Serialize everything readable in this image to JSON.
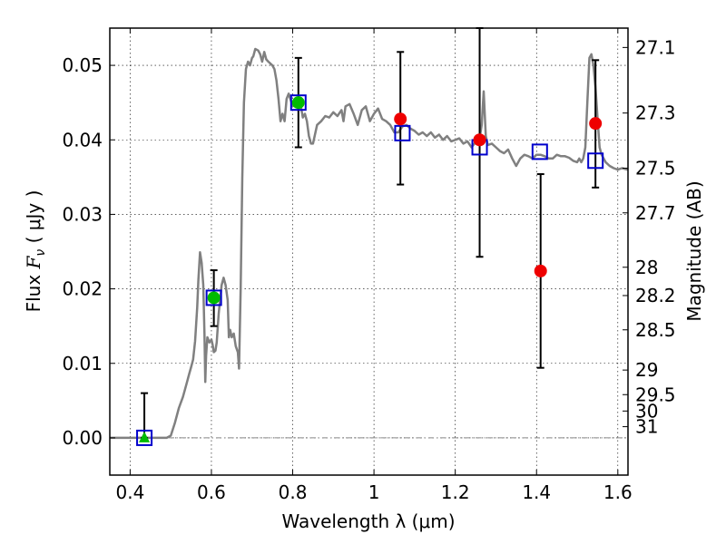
{
  "chart_data": {
    "type": "scatter",
    "xlabel": "Wavelength  λ (μm)",
    "ylabel_prefix": "Flux ",
    "ylabel_symbol": "F",
    "ylabel_subscript": "ν",
    "ylabel_suffix": " ( μJy )",
    "y2label": "Magnitude (AB)",
    "xlim": [
      0.35,
      1.625
    ],
    "ylim": [
      -0.005,
      0.055
    ],
    "grid": true,
    "xticks": [
      0.4,
      0.6,
      0.8,
      1.0,
      1.2,
      1.4,
      1.6
    ],
    "xtick_labels": [
      "0.4",
      "0.6",
      "0.8",
      "1",
      "1.2",
      "1.4",
      "1.6"
    ],
    "yticks": [
      0.0,
      0.01,
      0.02,
      0.03,
      0.04,
      0.05
    ],
    "ytick_labels": [
      "0.00",
      "0.01",
      "0.02",
      "0.03",
      "0.04",
      "0.05"
    ],
    "y2ticks": [
      {
        "label": "27.1",
        "flux": 0.0524
      },
      {
        "label": "27.3",
        "flux": 0.0436
      },
      {
        "label": "27.5",
        "flux": 0.0362
      },
      {
        "label": "27.7",
        "flux": 0.0302
      },
      {
        "label": "28",
        "flux": 0.0229
      },
      {
        "label": "28.2",
        "flux": 0.0191
      },
      {
        "label": "28.5",
        "flux": 0.0145
      },
      {
        "label": "29",
        "flux": 0.0091
      },
      {
        "label": "29.5",
        "flux": 0.0058
      },
      {
        "label": "30",
        "flux": 0.0036
      },
      {
        "label": "31",
        "flux": 0.0015
      }
    ],
    "zero_line": {
      "y": 0.0,
      "color": "#888888"
    },
    "sed_model": {
      "color": "#808080",
      "points": [
        [
          0.35,
          0.0
        ],
        [
          0.49,
          0.0
        ],
        [
          0.5,
          0.0003
        ],
        [
          0.51,
          0.002
        ],
        [
          0.52,
          0.004
        ],
        [
          0.53,
          0.0055
        ],
        [
          0.54,
          0.0075
        ],
        [
          0.545,
          0.0085
        ],
        [
          0.55,
          0.0095
        ],
        [
          0.555,
          0.0105
        ],
        [
          0.56,
          0.013
        ],
        [
          0.565,
          0.0175
        ],
        [
          0.568,
          0.0212
        ],
        [
          0.572,
          0.0249
        ],
        [
          0.576,
          0.0235
        ],
        [
          0.58,
          0.0205
        ],
        [
          0.583,
          0.014
        ],
        [
          0.585,
          0.0075
        ],
        [
          0.587,
          0.011
        ],
        [
          0.59,
          0.0135
        ],
        [
          0.595,
          0.0128
        ],
        [
          0.6,
          0.0132
        ],
        [
          0.603,
          0.0125
        ],
        [
          0.606,
          0.0115
        ],
        [
          0.61,
          0.0117
        ],
        [
          0.613,
          0.0128
        ],
        [
          0.618,
          0.0167
        ],
        [
          0.625,
          0.0205
        ],
        [
          0.63,
          0.0215
        ],
        [
          0.635,
          0.0205
        ],
        [
          0.64,
          0.0185
        ],
        [
          0.643,
          0.0135
        ],
        [
          0.646,
          0.0145
        ],
        [
          0.65,
          0.0135
        ],
        [
          0.655,
          0.014
        ],
        [
          0.66,
          0.0123
        ],
        [
          0.665,
          0.0115
        ],
        [
          0.668,
          0.0093
        ],
        [
          0.672,
          0.02
        ],
        [
          0.676,
          0.035
        ],
        [
          0.68,
          0.045
        ],
        [
          0.685,
          0.0495
        ],
        [
          0.69,
          0.0505
        ],
        [
          0.695,
          0.05
        ],
        [
          0.7,
          0.051
        ],
        [
          0.703,
          0.0512
        ],
        [
          0.708,
          0.0522
        ],
        [
          0.715,
          0.052
        ],
        [
          0.72,
          0.0515
        ],
        [
          0.725,
          0.0505
        ],
        [
          0.73,
          0.0518
        ],
        [
          0.735,
          0.0508
        ],
        [
          0.74,
          0.0505
        ],
        [
          0.75,
          0.05
        ],
        [
          0.755,
          0.0495
        ],
        [
          0.76,
          0.048
        ],
        [
          0.765,
          0.0455
        ],
        [
          0.77,
          0.0425
        ],
        [
          0.775,
          0.0435
        ],
        [
          0.78,
          0.0425
        ],
        [
          0.785,
          0.0455
        ],
        [
          0.79,
          0.0462
        ],
        [
          0.8,
          0.0445
        ],
        [
          0.81,
          0.045
        ],
        [
          0.82,
          0.0445
        ],
        [
          0.825,
          0.043
        ],
        [
          0.83,
          0.0435
        ],
        [
          0.835,
          0.0425
        ],
        [
          0.84,
          0.0405
        ],
        [
          0.845,
          0.0395
        ],
        [
          0.85,
          0.0395
        ],
        [
          0.86,
          0.042
        ],
        [
          0.87,
          0.0425
        ],
        [
          0.88,
          0.0432
        ],
        [
          0.89,
          0.043
        ],
        [
          0.9,
          0.0437
        ],
        [
          0.91,
          0.0432
        ],
        [
          0.92,
          0.044
        ],
        [
          0.925,
          0.0425
        ],
        [
          0.93,
          0.0445
        ],
        [
          0.94,
          0.0448
        ],
        [
          0.95,
          0.0435
        ],
        [
          0.96,
          0.042
        ],
        [
          0.97,
          0.044
        ],
        [
          0.98,
          0.0445
        ],
        [
          0.99,
          0.0425
        ],
        [
          1.0,
          0.0435
        ],
        [
          1.01,
          0.0442
        ],
        [
          1.02,
          0.0428
        ],
        [
          1.03,
          0.0425
        ],
        [
          1.04,
          0.042
        ],
        [
          1.05,
          0.041
        ],
        [
          1.06,
          0.041
        ],
        [
          1.07,
          0.0418
        ],
        [
          1.08,
          0.042
        ],
        [
          1.09,
          0.0415
        ],
        [
          1.1,
          0.0412
        ],
        [
          1.11,
          0.0407
        ],
        [
          1.12,
          0.041
        ],
        [
          1.13,
          0.0405
        ],
        [
          1.14,
          0.041
        ],
        [
          1.15,
          0.0403
        ],
        [
          1.16,
          0.0407
        ],
        [
          1.17,
          0.04
        ],
        [
          1.18,
          0.0405
        ],
        [
          1.19,
          0.0398
        ],
        [
          1.2,
          0.04
        ],
        [
          1.21,
          0.0402
        ],
        [
          1.22,
          0.0395
        ],
        [
          1.23,
          0.0398
        ],
        [
          1.24,
          0.039
        ],
        [
          1.25,
          0.0397
        ],
        [
          1.26,
          0.0402
        ],
        [
          1.265,
          0.042
        ],
        [
          1.27,
          0.0465
        ],
        [
          1.275,
          0.0405
        ],
        [
          1.28,
          0.0393
        ],
        [
          1.29,
          0.0395
        ],
        [
          1.3,
          0.039
        ],
        [
          1.31,
          0.0385
        ],
        [
          1.32,
          0.0382
        ],
        [
          1.33,
          0.0387
        ],
        [
          1.34,
          0.0375
        ],
        [
          1.35,
          0.0365
        ],
        [
          1.36,
          0.0375
        ],
        [
          1.37,
          0.038
        ],
        [
          1.38,
          0.0378
        ],
        [
          1.39,
          0.0375
        ],
        [
          1.4,
          0.038
        ],
        [
          1.41,
          0.038
        ],
        [
          1.42,
          0.0378
        ],
        [
          1.43,
          0.0375
        ],
        [
          1.44,
          0.0375
        ],
        [
          1.45,
          0.038
        ],
        [
          1.46,
          0.0378
        ],
        [
          1.47,
          0.0378
        ],
        [
          1.48,
          0.0376
        ],
        [
          1.49,
          0.0372
        ],
        [
          1.5,
          0.037
        ],
        [
          1.505,
          0.0375
        ],
        [
          1.51,
          0.037
        ],
        [
          1.515,
          0.0375
        ],
        [
          1.52,
          0.039
        ],
        [
          1.525,
          0.045
        ],
        [
          1.53,
          0.051
        ],
        [
          1.535,
          0.0515
        ],
        [
          1.54,
          0.05
        ],
        [
          1.545,
          0.047
        ],
        [
          1.55,
          0.043
        ],
        [
          1.555,
          0.039
        ],
        [
          1.56,
          0.038
        ],
        [
          1.57,
          0.037
        ],
        [
          1.58,
          0.0365
        ],
        [
          1.59,
          0.0362
        ],
        [
          1.6,
          0.036
        ],
        [
          1.61,
          0.0362
        ],
        [
          1.625,
          0.036
        ]
      ]
    },
    "series": [
      {
        "marker": "square-open",
        "color": "#0000cc",
        "points": [
          {
            "x": 0.435,
            "y": 0.0
          },
          {
            "x": 0.606,
            "y": 0.0188
          },
          {
            "x": 0.814,
            "y": 0.045
          },
          {
            "x": 1.07,
            "y": 0.0409
          },
          {
            "x": 1.26,
            "y": 0.039
          },
          {
            "x": 1.408,
            "y": 0.0384
          },
          {
            "x": 1.545,
            "y": 0.0372
          }
        ]
      },
      {
        "marker": "circle",
        "color": "#00bb00",
        "points": [
          {
            "x": 0.606,
            "y": 0.0188
          },
          {
            "x": 0.814,
            "y": 0.045
          }
        ]
      },
      {
        "marker": "triangle",
        "color": "#00bb00",
        "points": [
          {
            "x": 0.435,
            "y": 0.0
          }
        ]
      },
      {
        "marker": "circle",
        "color": "#ee0000",
        "points": [
          {
            "x": 1.065,
            "y": 0.0428
          },
          {
            "x": 1.26,
            "y": 0.04
          },
          {
            "x": 1.41,
            "y": 0.0224
          },
          {
            "x": 1.545,
            "y": 0.0422
          }
        ]
      }
    ],
    "errorbars": [
      {
        "x": 0.435,
        "low": 0.0,
        "high": 0.006
      },
      {
        "x": 0.606,
        "low": 0.015,
        "high": 0.0225
      },
      {
        "x": 0.814,
        "low": 0.039,
        "high": 0.051
      },
      {
        "x": 1.065,
        "low": 0.034,
        "high": 0.0518
      },
      {
        "x": 1.26,
        "low": 0.0243,
        "high": 0.055
      },
      {
        "x": 1.41,
        "low": 0.0094,
        "high": 0.0354
      },
      {
        "x": 1.545,
        "low": 0.0336,
        "high": 0.0507
      }
    ]
  }
}
